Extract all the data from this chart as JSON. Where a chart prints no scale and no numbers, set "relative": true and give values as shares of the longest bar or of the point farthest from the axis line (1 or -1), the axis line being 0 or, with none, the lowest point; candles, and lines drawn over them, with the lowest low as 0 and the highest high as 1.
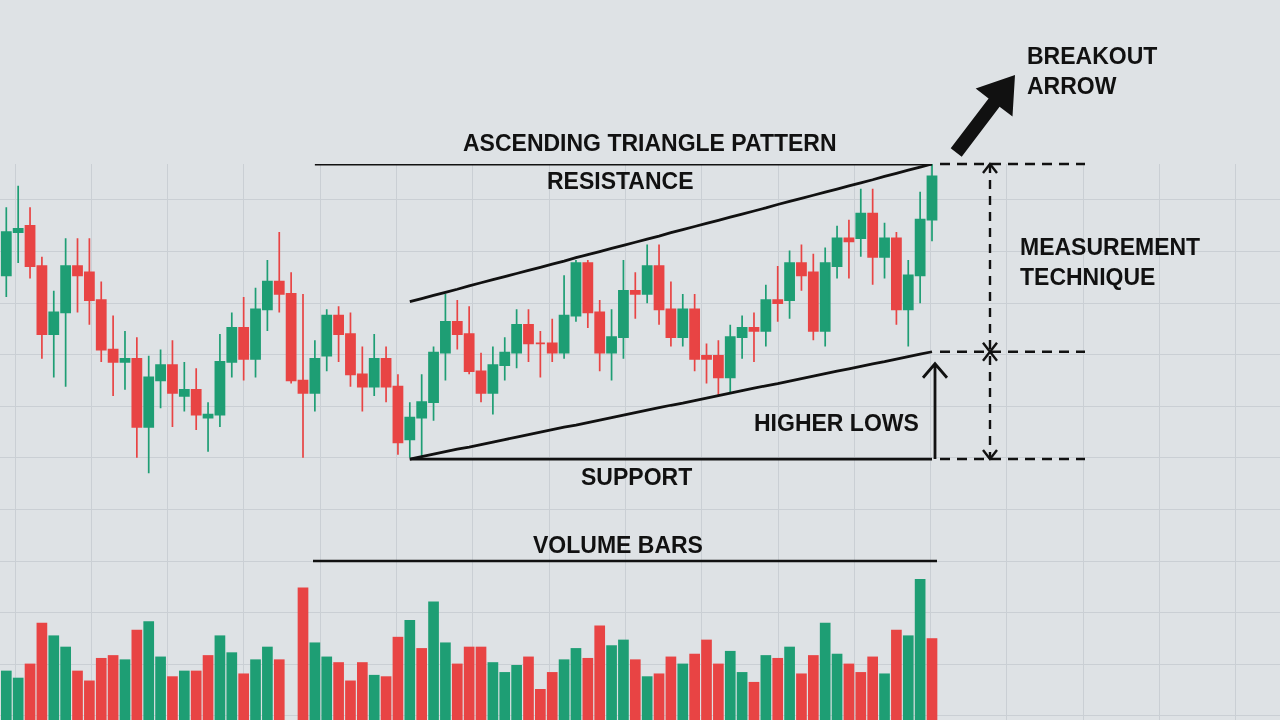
{
  "chart_data": [
    {
      "type": "candlestick",
      "title": "ASCENDING TRIANGLE PATTERN",
      "relative": true,
      "grid": true,
      "categories": [
        null,
        null,
        null,
        null,
        null,
        null,
        null,
        null,
        null,
        null,
        null,
        null,
        null,
        null,
        null,
        null,
        null,
        null,
        null,
        null,
        null,
        null,
        null,
        null,
        null,
        null,
        null,
        null,
        null,
        null,
        null,
        null,
        null,
        null,
        null,
        null,
        null,
        null,
        null,
        null,
        null,
        null,
        null,
        null,
        null,
        null,
        null,
        null,
        null,
        null,
        null,
        null,
        null,
        null,
        null,
        null,
        null,
        null,
        null,
        null,
        null,
        null,
        null,
        null,
        null,
        null,
        null,
        null,
        null,
        null,
        null,
        null,
        null,
        null,
        null,
        null,
        null,
        null,
        null
      ],
      "ohlc": [
        [
          0.64,
          0.86,
          0.57,
          0.78
        ],
        [
          0.78,
          0.93,
          0.68,
          0.79
        ],
        [
          0.8,
          0.86,
          0.63,
          0.67
        ],
        [
          0.67,
          0.7,
          0.37,
          0.45
        ],
        [
          0.45,
          0.59,
          0.31,
          0.52
        ],
        [
          0.52,
          0.76,
          0.28,
          0.67
        ],
        [
          0.67,
          0.76,
          0.52,
          0.64
        ],
        [
          0.65,
          0.76,
          0.48,
          0.56
        ],
        [
          0.56,
          0.62,
          0.36,
          0.4
        ],
        [
          0.4,
          0.51,
          0.25,
          0.36
        ],
        [
          0.36,
          0.46,
          0.27,
          0.37
        ],
        [
          0.37,
          0.44,
          0.05,
          0.15
        ],
        [
          0.15,
          0.38,
          0.0,
          0.31
        ],
        [
          0.3,
          0.4,
          0.21,
          0.35
        ],
        [
          0.35,
          0.43,
          0.15,
          0.26
        ],
        [
          0.25,
          0.36,
          0.2,
          0.27
        ],
        [
          0.27,
          0.34,
          0.14,
          0.19
        ],
        [
          0.18,
          0.23,
          0.07,
          0.19
        ],
        [
          0.19,
          0.45,
          0.15,
          0.36
        ],
        [
          0.36,
          0.52,
          0.31,
          0.47
        ],
        [
          0.47,
          0.57,
          0.3,
          0.37
        ],
        [
          0.37,
          0.6,
          0.31,
          0.53
        ],
        [
          0.53,
          0.69,
          0.46,
          0.62
        ],
        [
          0.62,
          0.78,
          0.52,
          0.58
        ],
        [
          0.58,
          0.65,
          0.29,
          0.3
        ],
        [
          0.3,
          0.58,
          0.05,
          0.26
        ],
        [
          0.26,
          0.43,
          0.2,
          0.37
        ],
        [
          0.38,
          0.53,
          0.33,
          0.51
        ],
        [
          0.51,
          0.54,
          0.36,
          0.45
        ],
        [
          0.45,
          0.52,
          0.28,
          0.32
        ],
        [
          0.32,
          0.41,
          0.2,
          0.28
        ],
        [
          0.28,
          0.45,
          0.25,
          0.37
        ],
        [
          0.37,
          0.41,
          0.23,
          0.28
        ],
        [
          0.28,
          0.32,
          0.06,
          0.1
        ],
        [
          0.11,
          0.23,
          0.05,
          0.18
        ],
        [
          0.18,
          0.32,
          0.05,
          0.23
        ],
        [
          0.23,
          0.41,
          0.17,
          0.39
        ],
        [
          0.39,
          0.58,
          0.3,
          0.49
        ],
        [
          0.49,
          0.56,
          0.4,
          0.45
        ],
        [
          0.45,
          0.54,
          0.32,
          0.33
        ],
        [
          0.33,
          0.39,
          0.23,
          0.26
        ],
        [
          0.26,
          0.41,
          0.19,
          0.35
        ],
        [
          0.35,
          0.44,
          0.3,
          0.39
        ],
        [
          0.39,
          0.53,
          0.34,
          0.48
        ],
        [
          0.48,
          0.53,
          0.36,
          0.42
        ],
        [
          0.42,
          0.46,
          0.31,
          0.42
        ],
        [
          0.42,
          0.5,
          0.36,
          0.39
        ],
        [
          0.39,
          0.64,
          0.37,
          0.51
        ],
        [
          0.51,
          0.69,
          0.49,
          0.68
        ],
        [
          0.68,
          0.69,
          0.47,
          0.52
        ],
        [
          0.52,
          0.56,
          0.33,
          0.39
        ],
        [
          0.39,
          0.53,
          0.3,
          0.44
        ],
        [
          0.44,
          0.69,
          0.37,
          0.59
        ],
        [
          0.59,
          0.65,
          0.5,
          0.58
        ],
        [
          0.58,
          0.74,
          0.55,
          0.67
        ],
        [
          0.67,
          0.74,
          0.48,
          0.53
        ],
        [
          0.53,
          0.62,
          0.41,
          0.44
        ],
        [
          0.44,
          0.58,
          0.41,
          0.53
        ],
        [
          0.53,
          0.58,
          0.33,
          0.37
        ],
        [
          0.38,
          0.42,
          0.29,
          0.37
        ],
        [
          0.38,
          0.43,
          0.25,
          0.31
        ],
        [
          0.31,
          0.48,
          0.26,
          0.44
        ],
        [
          0.44,
          0.51,
          0.37,
          0.47
        ],
        [
          0.47,
          0.52,
          0.36,
          0.46
        ],
        [
          0.46,
          0.61,
          0.41,
          0.56
        ],
        [
          0.56,
          0.67,
          0.49,
          0.55
        ],
        [
          0.56,
          0.72,
          0.5,
          0.68
        ],
        [
          0.68,
          0.74,
          0.59,
          0.64
        ],
        [
          0.65,
          0.71,
          0.43,
          0.46
        ],
        [
          0.46,
          0.73,
          0.41,
          0.68
        ],
        [
          0.67,
          0.8,
          0.63,
          0.76
        ],
        [
          0.76,
          0.82,
          0.63,
          0.75
        ],
        [
          0.76,
          0.92,
          0.7,
          0.84
        ],
        [
          0.84,
          0.92,
          0.61,
          0.7
        ],
        [
          0.7,
          0.81,
          0.63,
          0.76
        ],
        [
          0.76,
          0.78,
          0.48,
          0.53
        ],
        [
          0.53,
          0.69,
          0.41,
          0.64
        ],
        [
          0.64,
          0.91,
          0.55,
          0.82
        ],
        [
          0.82,
          1.0,
          0.75,
          0.96
        ]
      ],
      "colors": [
        "#1e9e74",
        "#1e9e74",
        "#e84444",
        "#e84444",
        "#1e9e74",
        "#1e9e74",
        "#e84444",
        "#e84444",
        "#e84444",
        "#e84444",
        "#1e9e74",
        "#e84444",
        "#1e9e74",
        "#1e9e74",
        "#e84444",
        "#1e9e74",
        "#e84444",
        "#1e9e74",
        "#1e9e74",
        "#1e9e74",
        "#e84444",
        "#1e9e74",
        "#1e9e74",
        "#e84444",
        "#e84444",
        "#e84444",
        "#1e9e74",
        "#1e9e74",
        "#e84444",
        "#e84444",
        "#e84444",
        "#1e9e74",
        "#e84444",
        "#e84444",
        "#1e9e74",
        "#1e9e74",
        "#1e9e74",
        "#1e9e74",
        "#e84444",
        "#e84444",
        "#e84444",
        "#1e9e74",
        "#1e9e74",
        "#1e9e74",
        "#e84444",
        "#e84444",
        "#e84444",
        "#1e9e74",
        "#1e9e74",
        "#e84444",
        "#e84444",
        "#1e9e74",
        "#1e9e74",
        "#e84444",
        "#1e9e74",
        "#e84444",
        "#e84444",
        "#1e9e74",
        "#e84444",
        "#e84444",
        "#e84444",
        "#1e9e74",
        "#1e9e74",
        "#e84444",
        "#1e9e74",
        "#e84444",
        "#1e9e74",
        "#e84444",
        "#e84444",
        "#1e9e74",
        "#1e9e74",
        "#e84444",
        "#1e9e74",
        "#e84444",
        "#1e9e74",
        "#e84444",
        "#1e9e74",
        "#1e9e74",
        "#1e9e74"
      ],
      "series": [
        {
          "type": "line",
          "color": "#111111",
          "values": [
            null,
            null,
            null,
            null,
            null,
            null,
            null,
            null,
            null,
            null,
            null,
            null,
            null,
            null,
            null,
            null,
            null,
            null,
            null,
            null,
            null,
            null,
            null,
            null,
            null,
            null,
            1.0,
            1.0,
            1.0,
            1.0,
            1.0,
            1.0,
            1.0,
            1.0,
            1.0,
            1.0,
            1.0,
            1.0,
            1.0,
            1.0,
            1.0,
            1.0,
            1.0,
            1.0,
            1.0,
            1.0,
            1.0,
            1.0,
            1.0,
            1.0,
            1.0,
            1.0,
            1.0,
            1.0,
            1.0,
            1.0,
            1.0,
            1.0,
            1.0,
            1.0,
            1.0,
            1.0,
            1.0,
            1.0,
            1.0,
            1.0,
            1.0,
            1.0,
            1.0,
            1.0,
            1.0,
            1.0,
            1.0,
            1.0,
            1.0,
            1.0,
            1.0,
            1.0,
            1.0
          ]
        },
        {
          "type": "line",
          "color": "#111111",
          "values": [
            null,
            null,
            null,
            null,
            null,
            null,
            null,
            null,
            null,
            null,
            null,
            null,
            null,
            null,
            null,
            null,
            null,
            null,
            null,
            null,
            null,
            null,
            null,
            null,
            null,
            null,
            null,
            null,
            null,
            null,
            null,
            null,
            null,
            null,
            0.555,
            0.565,
            0.575,
            0.585,
            0.595,
            0.606,
            0.616,
            0.626,
            0.636,
            0.646,
            0.656,
            0.666,
            0.676,
            0.686,
            0.697,
            0.707,
            0.717,
            0.727,
            0.737,
            0.747,
            0.757,
            0.767,
            0.778,
            0.788,
            0.798,
            0.808,
            0.818,
            0.828,
            0.838,
            0.848,
            0.858,
            0.869,
            0.879,
            0.889,
            0.899,
            0.909,
            0.919,
            0.929,
            0.939,
            0.949,
            0.96,
            0.97,
            0.98,
            0.99,
            1.0
          ]
        },
        {
          "type": "line",
          "color": "#111111",
          "values": [
            null,
            null,
            null,
            null,
            null,
            null,
            null,
            null,
            null,
            null,
            null,
            null,
            null,
            null,
            null,
            null,
            null,
            null,
            null,
            null,
            null,
            null,
            null,
            null,
            null,
            null,
            null,
            null,
            null,
            null,
            null,
            null,
            null,
            null,
            0.046,
            0.054,
            0.062,
            0.07,
            0.078,
            0.085,
            0.093,
            0.101,
            0.109,
            0.117,
            0.125,
            0.133,
            0.141,
            0.149,
            0.156,
            0.164,
            0.172,
            0.18,
            0.188,
            0.196,
            0.204,
            0.212,
            0.22,
            0.227,
            0.235,
            0.243,
            0.251,
            0.259,
            0.267,
            0.275,
            0.283,
            0.29,
            0.298,
            0.306,
            0.314,
            0.322,
            0.33,
            0.338,
            0.346,
            0.354,
            0.361,
            0.369,
            0.377,
            0.385,
            0.393
          ]
        },
        {
          "type": "line",
          "color": "#111111",
          "values": [
            null,
            null,
            null,
            null,
            null,
            null,
            null,
            null,
            null,
            null,
            null,
            null,
            null,
            null,
            null,
            null,
            null,
            null,
            null,
            null,
            null,
            null,
            null,
            null,
            null,
            null,
            null,
            null,
            null,
            null,
            null,
            null,
            null,
            null,
            0.046,
            0.046,
            0.046,
            0.046,
            0.046,
            0.046,
            0.046,
            0.046,
            0.046,
            0.046,
            0.046,
            0.046,
            0.046,
            0.046,
            0.046,
            0.046,
            0.046,
            0.046,
            0.046,
            0.046,
            0.046,
            0.046,
            0.046,
            0.046,
            0.046,
            0.046,
            0.046,
            0.046,
            0.046,
            0.046,
            0.046,
            0.046,
            0.046,
            0.046,
            0.046,
            0.046,
            0.046,
            0.046,
            0.046,
            0.046,
            0.046,
            0.046,
            0.046,
            0.046,
            0.046
          ]
        }
      ],
      "annotations": [
        "RESISTANCE",
        "SUPPORT",
        "HIGHER LOWS",
        "MEASUREMENT\nTECHNIQUE",
        "BREAKOUT\nARROW"
      ]
    },
    {
      "type": "bar",
      "title": "VOLUME BARS",
      "relative": true,
      "grid": true,
      "categories": [
        null,
        null,
        null,
        null,
        null,
        null,
        null,
        null,
        null,
        null,
        null,
        null,
        null,
        null,
        null,
        null,
        null,
        null,
        null,
        null,
        null,
        null,
        null,
        null,
        null,
        null,
        null,
        null,
        null,
        null,
        null,
        null,
        null,
        null,
        null,
        null,
        null,
        null,
        null,
        null,
        null,
        null,
        null,
        null,
        null,
        null,
        null,
        null,
        null,
        null,
        null,
        null,
        null,
        null,
        null,
        null,
        null,
        null,
        null,
        null,
        null,
        null,
        null,
        null,
        null,
        null,
        null,
        null,
        null,
        null,
        null,
        null,
        null,
        null,
        null,
        null,
        null,
        null,
        null
      ],
      "values": [
        0.35,
        0.3,
        0.4,
        0.69,
        0.6,
        0.52,
        0.35,
        0.28,
        0.44,
        0.46,
        0.43,
        0.64,
        0.7,
        0.45,
        0.31,
        0.35,
        0.35,
        0.46,
        0.6,
        0.48,
        0.33,
        0.43,
        0.52,
        0.43,
        null,
        0.94,
        0.55,
        0.45,
        0.41,
        0.28,
        0.41,
        0.32,
        0.31,
        0.59,
        0.71,
        0.51,
        0.84,
        0.55,
        0.4,
        0.52,
        0.52,
        0.41,
        0.34,
        0.39,
        0.45,
        0.22,
        0.34,
        0.43,
        0.51,
        0.44,
        0.67,
        0.53,
        0.57,
        0.43,
        0.31,
        0.33,
        0.45,
        0.4,
        0.47,
        0.57,
        0.4,
        0.49,
        0.34,
        0.27,
        0.46,
        0.44,
        0.52,
        0.33,
        0.46,
        0.69,
        0.47,
        0.4,
        0.34,
        0.45,
        0.33,
        0.64,
        0.6,
        1.0,
        0.58
      ],
      "colors": [
        "#1e9e74",
        "#1e9e74",
        "#e84444",
        "#e84444",
        "#1e9e74",
        "#1e9e74",
        "#e84444",
        "#e84444",
        "#e84444",
        "#e84444",
        "#1e9e74",
        "#e84444",
        "#1e9e74",
        "#1e9e74",
        "#e84444",
        "#1e9e74",
        "#e84444",
        "#e84444",
        "#1e9e74",
        "#1e9e74",
        "#e84444",
        "#1e9e74",
        "#1e9e74",
        "#e84444",
        null,
        "#e84444",
        "#1e9e74",
        "#1e9e74",
        "#e84444",
        "#e84444",
        "#e84444",
        "#1e9e74",
        "#e84444",
        "#e84444",
        "#1e9e74",
        "#e84444",
        "#1e9e74",
        "#1e9e74",
        "#e84444",
        "#e84444",
        "#e84444",
        "#1e9e74",
        "#1e9e74",
        "#1e9e74",
        "#e84444",
        "#e84444",
        "#e84444",
        "#1e9e74",
        "#1e9e74",
        "#e84444",
        "#e84444",
        "#1e9e74",
        "#1e9e74",
        "#e84444",
        "#1e9e74",
        "#e84444",
        "#e84444",
        "#1e9e74",
        "#e84444",
        "#e84444",
        "#e84444",
        "#1e9e74",
        "#1e9e74",
        "#e84444",
        "#1e9e74",
        "#e84444",
        "#1e9e74",
        "#e84444",
        "#e84444",
        "#1e9e74",
        "#1e9e74",
        "#e84444",
        "#e84444",
        "#e84444",
        "#1e9e74",
        "#e84444",
        "#1e9e74",
        "#1e9e74",
        "#e84444"
      ]
    }
  ]
}
